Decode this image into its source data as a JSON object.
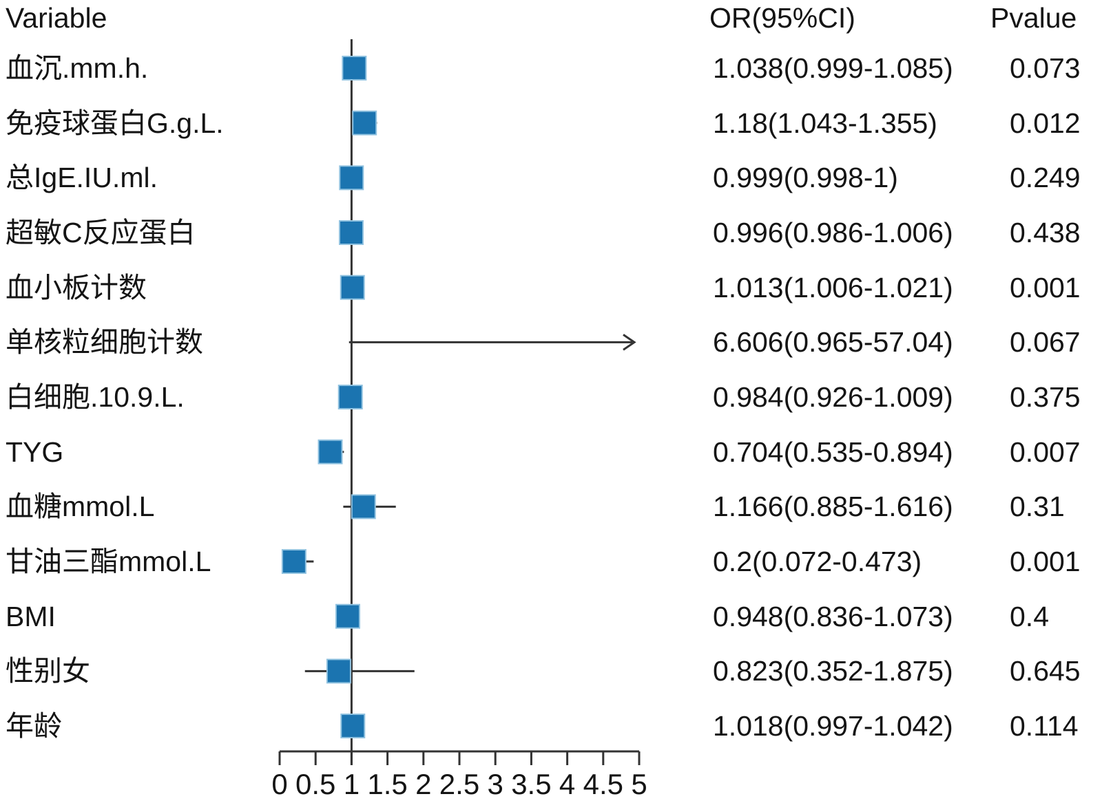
{
  "header": {
    "variable": "Variable",
    "or": "OR(95%CI)",
    "pvalue": "Pvalue"
  },
  "colors": {
    "square": "#1b74b0",
    "square_border": "#90c2e0",
    "line": "#333333",
    "text": "#141414"
  },
  "chart_data": {
    "type": "forest",
    "columns": [
      "Variable",
      "OR(95%CI)",
      "Pvalue"
    ],
    "x_axis": {
      "range": [
        0,
        5
      ],
      "tick_labels": [
        "0",
        "0.5",
        "1",
        "1.5",
        "2",
        "2.5",
        "3",
        "3.5",
        "4",
        "4.5",
        "5"
      ],
      "reference_line": 1
    },
    "rows": [
      {
        "label": "血沉.mm.h.",
        "or": 1.038,
        "lo": 0.999,
        "hi": 1.085,
        "or_ci": "1.038(0.999-1.085)",
        "pvalue": "0.073",
        "arrow": false
      },
      {
        "label": "免疫球蛋白G.g.L.",
        "or": 1.18,
        "lo": 1.043,
        "hi": 1.355,
        "or_ci": "1.18(1.043-1.355)",
        "pvalue": "0.012",
        "arrow": false
      },
      {
        "label": "总IgE.IU.ml.",
        "or": 0.999,
        "lo": 0.998,
        "hi": 1.0,
        "or_ci": "0.999(0.998-1)",
        "pvalue": "0.249",
        "arrow": false
      },
      {
        "label": "超敏C反应蛋白",
        "or": 0.996,
        "lo": 0.986,
        "hi": 1.006,
        "or_ci": "0.996(0.986-1.006)",
        "pvalue": "0.438",
        "arrow": false
      },
      {
        "label": "血小板计数",
        "or": 1.013,
        "lo": 1.006,
        "hi": 1.021,
        "or_ci": "1.013(1.006-1.021)",
        "pvalue": "0.001",
        "arrow": false
      },
      {
        "label": "单核粒细胞计数",
        "or": 6.606,
        "lo": 0.965,
        "hi": 57.04,
        "or_ci": "6.606(0.965-57.04)",
        "pvalue": "0.067",
        "arrow": true
      },
      {
        "label": "白细胞.10.9.L.",
        "or": 0.984,
        "lo": 0.926,
        "hi": 1.009,
        "or_ci": "0.984(0.926-1.009)",
        "pvalue": "0.375",
        "arrow": false
      },
      {
        "label": "TYG",
        "or": 0.704,
        "lo": 0.535,
        "hi": 0.894,
        "or_ci": "0.704(0.535-0.894)",
        "pvalue": "0.007",
        "arrow": false
      },
      {
        "label": "血糖mmol.L",
        "or": 1.166,
        "lo": 0.885,
        "hi": 1.616,
        "or_ci": "1.166(0.885-1.616)",
        "pvalue": "0.31",
        "arrow": false
      },
      {
        "label": "甘油三酯mmol.L",
        "or": 0.2,
        "lo": 0.072,
        "hi": 0.473,
        "or_ci": "0.2(0.072-0.473)",
        "pvalue": "0.001",
        "arrow": false
      },
      {
        "label": "BMI",
        "or": 0.948,
        "lo": 0.836,
        "hi": 1.073,
        "or_ci": "0.948(0.836-1.073)",
        "pvalue": "0.4",
        "arrow": false
      },
      {
        "label": "性别女",
        "or": 0.823,
        "lo": 0.352,
        "hi": 1.875,
        "or_ci": "0.823(0.352-1.875)",
        "pvalue": "0.645",
        "arrow": false
      },
      {
        "label": "年龄",
        "or": 1.018,
        "lo": 0.997,
        "hi": 1.042,
        "or_ci": "1.018(0.997-1.042)",
        "pvalue": "0.114",
        "arrow": false
      }
    ]
  }
}
